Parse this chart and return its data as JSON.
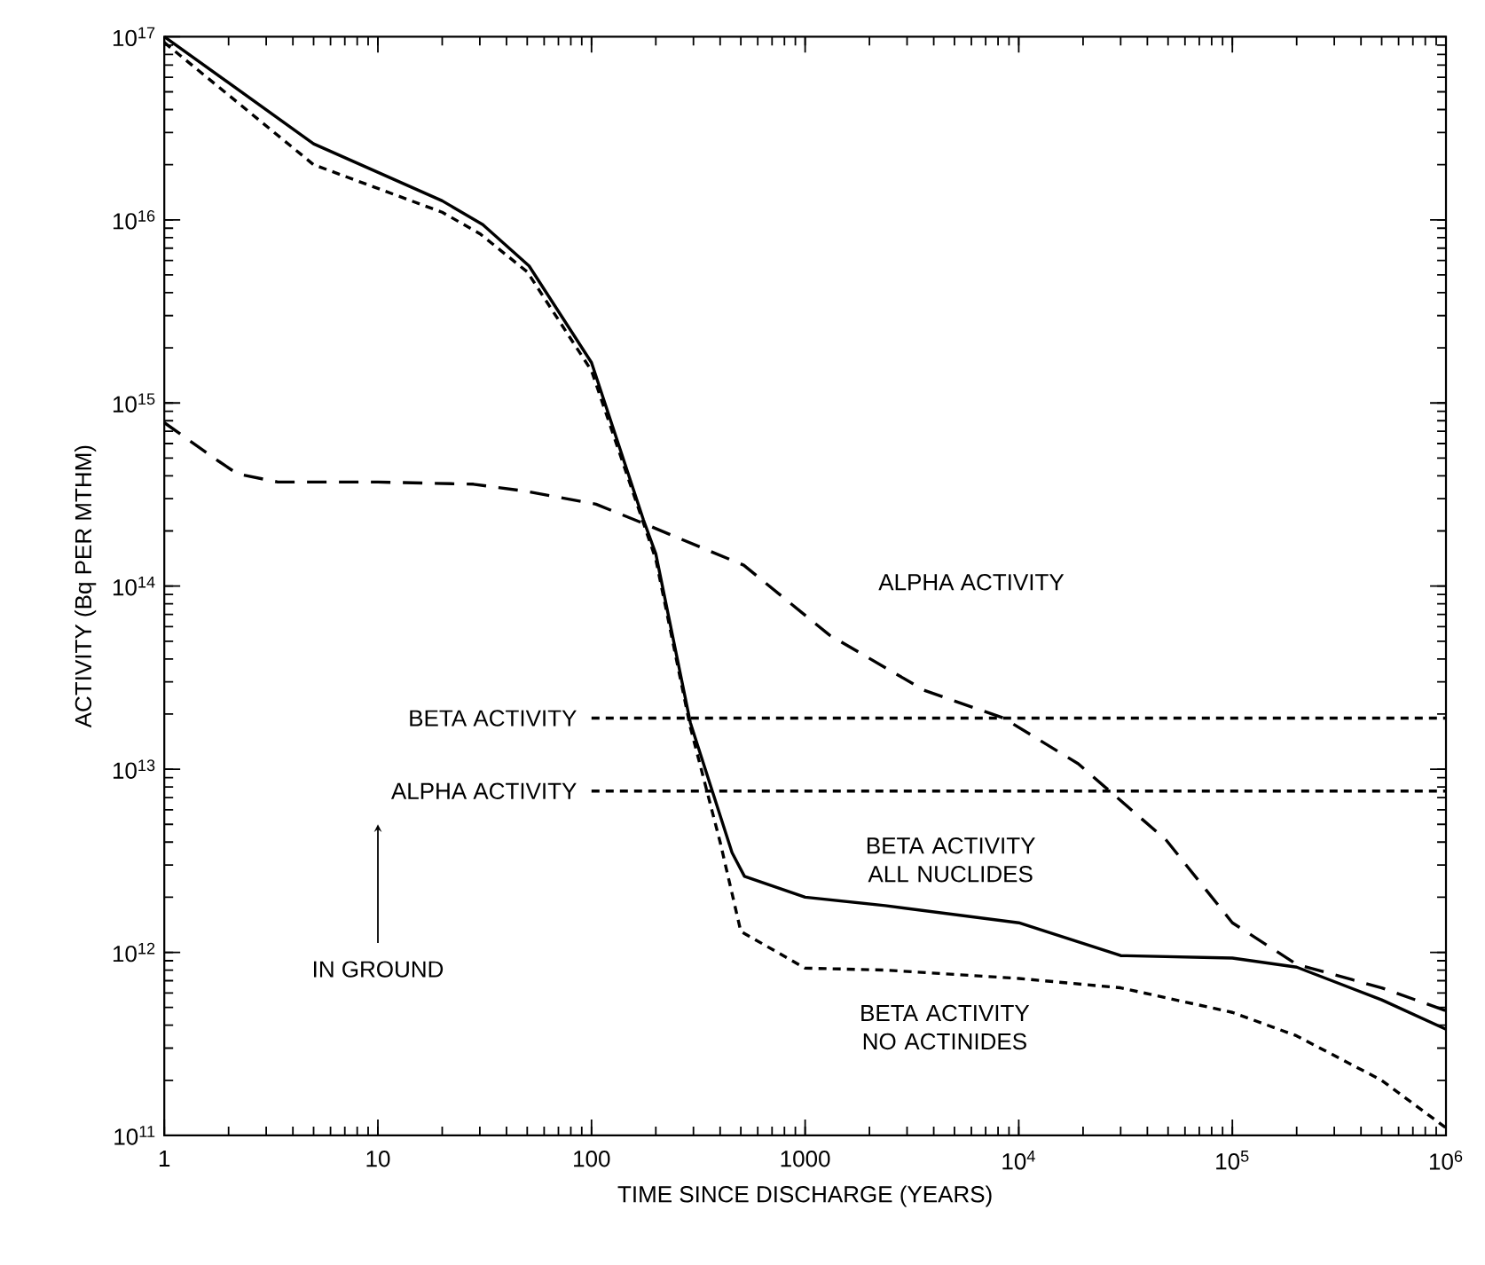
{
  "chart_data": {
    "type": "line",
    "xlabel": "TIME SINCE DISCHARGE (YEARS)",
    "ylabel": "ACTIVITY (Bq PER MTHM)",
    "log": "xy",
    "xlim": [
      1,
      1000000
    ],
    "ylim": [
      100000000000,
      100000000000000000
    ],
    "xticks": [
      1,
      10,
      100,
      1000,
      {
        "value": 10000,
        "label": "10$^{4}$"
      },
      {
        "value": 100000,
        "label": "10$^{5}$"
      },
      {
        "value": 1000000,
        "label": "10$^{6}$"
      }
    ],
    "yticks": [
      {
        "value": 100000000000,
        "label": "10$^{11}$"
      },
      {
        "value": 1000000000000,
        "label": "10$^{12}$"
      },
      {
        "value": 10000000000000,
        "label": "10$^{13}$"
      },
      {
        "value": 100000000000000,
        "label": "10$^{14}$"
      },
      {
        "value": 1000000000000000,
        "label": "10$^{15}$"
      },
      {
        "value": 10000000000000000,
        "label": "10$^{16}$"
      },
      {
        "value": 100000000000000000,
        "label": "10$^{17}$"
      }
    ],
    "series": [
      {
        "name": "BETA ACTIVITY ALL NUCLIDES",
        "color": "#000000",
        "line_style": "solid",
        "x": [
          1,
          5,
          20,
          31,
          51,
          100,
          175,
          200,
          290,
          455,
          520,
          1000,
          2370,
          10000,
          30000,
          100000,
          200000,
          500000,
          1000000
        ],
        "values": [
          1e+17,
          2.6e+16,
          1.27e+16,
          9400000000000000.0,
          5600000000000000.0,
          1660000000000000.0,
          230000000000000.0,
          150000000000000.0,
          18000000000000.0,
          3500000000000.0,
          2600000000000.0,
          2000000000000.0,
          1800000000000.0,
          1450000000000.0,
          960000000000.0,
          930000000000.0,
          830000000000.0,
          550000000000.0,
          380000000000.0
        ]
      },
      {
        "name": "BETA ACTIVITY NO ACTINIDES",
        "color": "#000000",
        "line_style": "dotted",
        "x": [
          1,
          5,
          20,
          30,
          50,
          100,
          200,
          290,
          400,
          500,
          1000,
          2370,
          10000,
          30000,
          100000,
          200000,
          500000,
          1000000
        ],
        "values": [
          9.3e+16,
          2e+16,
          1.1e+16,
          8400000000000000.0,
          5200000000000000.0,
          1500000000000000.0,
          140000000000000.0,
          17000000000000.0,
          4000000000000.0,
          1300000000000.0,
          820000000000.0,
          800000000000.0,
          720000000000.0,
          640000000000.0,
          470000000000.0,
          350000000000.0,
          200000000000.0,
          110000000000.0
        ]
      },
      {
        "name": "ALPHA ACTIVITY",
        "color": "#000000",
        "line_style": "dashed",
        "x": [
          1,
          1.8,
          2.2,
          3.4,
          10,
          28,
          49,
          105,
          175,
          516,
          1300,
          3600,
          8500,
          19000,
          27000,
          49000,
          100000,
          200000,
          500000,
          1000000
        ],
        "values": [
          780000000000000.0,
          480000000000000.0,
          410000000000000.0,
          370000000000000.0,
          370000000000000.0,
          360000000000000.0,
          330000000000000.0,
          280000000000000.0,
          220000000000000.0,
          130000000000000.0,
          54000000000000.0,
          27000000000000.0,
          19000000000000.0,
          10700000000000.0,
          7500000000000.0,
          4100000000000.0,
          1450000000000.0,
          860000000000.0,
          640000000000.0,
          480000000000.0
        ]
      },
      {
        "name": "BETA ACTIVITY",
        "color": "#000000",
        "line_style": "dotted",
        "x": [
          100,
          1000000
        ],
        "values": [
          19000000000000.0,
          19000000000000.0
        ]
      },
      {
        "name": "ALPHA ACTIVITY",
        "color": "#000000",
        "line_style": "dotted",
        "x": [
          100,
          1000000
        ],
        "values": [
          7600000000000.0,
          7600000000000.0
        ]
      }
    ],
    "annotations": [
      "IN GROUND"
    ]
  }
}
